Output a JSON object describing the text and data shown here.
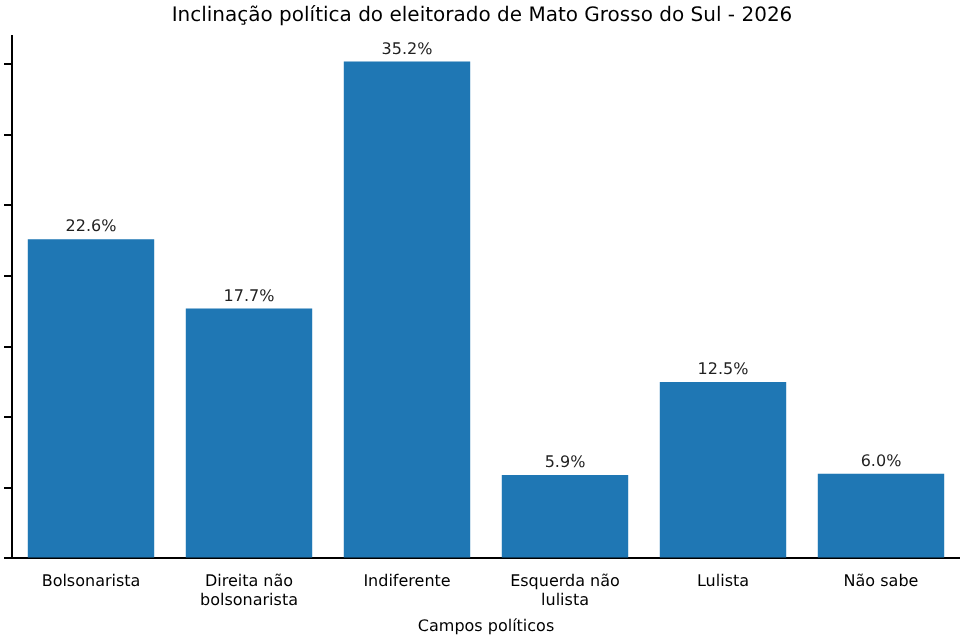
{
  "chart_data": {
    "type": "bar",
    "title": "Inclinação política do eleitorado de Mato Grosso do Sul - 2026",
    "xlabel": "Campos políticos",
    "categories": [
      "Bolsonarista",
      "Direita não bolsonarista",
      "Indiferente",
      "Esquerda não lulista",
      "Lulista",
      "Não sabe"
    ],
    "values": [
      22.6,
      17.7,
      35.2,
      5.9,
      12.5,
      6.0
    ],
    "value_labels": [
      "22.6%",
      "17.7%",
      "35.2%",
      "5.9%",
      "12.5%",
      "6.0%"
    ],
    "color": "#1f77b4",
    "ylim": [
      0,
      37
    ],
    "yticks": [
      {
        "value": 0,
        "label": null
      },
      {
        "value": 5,
        "label": null
      },
      {
        "value": 10,
        "label": null
      },
      {
        "value": 15,
        "label": null
      },
      {
        "value": 20,
        "label": null
      },
      {
        "value": 25,
        "label": null
      },
      {
        "value": 30,
        "label": null
      },
      {
        "value": 35,
        "label": null
      }
    ],
    "tick_labels": "x",
    "grid": false,
    "legend": false
  }
}
